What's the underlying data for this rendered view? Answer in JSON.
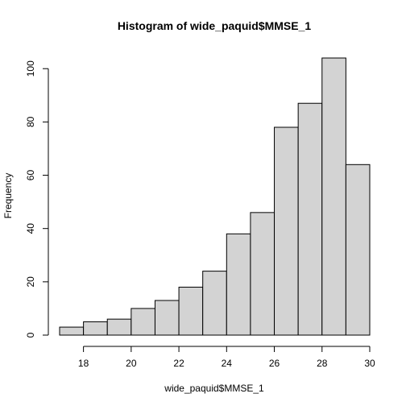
{
  "chart_data": {
    "type": "bar",
    "title": "Histogram of wide_paquid$MMSE_1",
    "xlabel": "wide_paquid$MMSE_1",
    "ylabel": "Frequency",
    "bins": [
      {
        "start": 17,
        "end": 18,
        "count": 3
      },
      {
        "start": 18,
        "end": 19,
        "count": 5
      },
      {
        "start": 19,
        "end": 20,
        "count": 6
      },
      {
        "start": 20,
        "end": 21,
        "count": 10
      },
      {
        "start": 21,
        "end": 22,
        "count": 13
      },
      {
        "start": 22,
        "end": 23,
        "count": 18
      },
      {
        "start": 23,
        "end": 24,
        "count": 24
      },
      {
        "start": 24,
        "end": 25,
        "count": 38
      },
      {
        "start": 25,
        "end": 26,
        "count": 46
      },
      {
        "start": 26,
        "end": 27,
        "count": 78
      },
      {
        "start": 27,
        "end": 28,
        "count": 87
      },
      {
        "start": 28,
        "end": 29,
        "count": 104
      },
      {
        "start": 29,
        "end": 30,
        "count": 64
      }
    ],
    "xlim": [
      17,
      30
    ],
    "ylim": [
      0,
      104
    ],
    "xticks": [
      18,
      20,
      22,
      24,
      26,
      28,
      30
    ],
    "yticks": [
      0,
      20,
      40,
      60,
      80,
      100
    ],
    "grid": false,
    "bar_color": "#d3d3d3",
    "edge_color": "#000000"
  }
}
